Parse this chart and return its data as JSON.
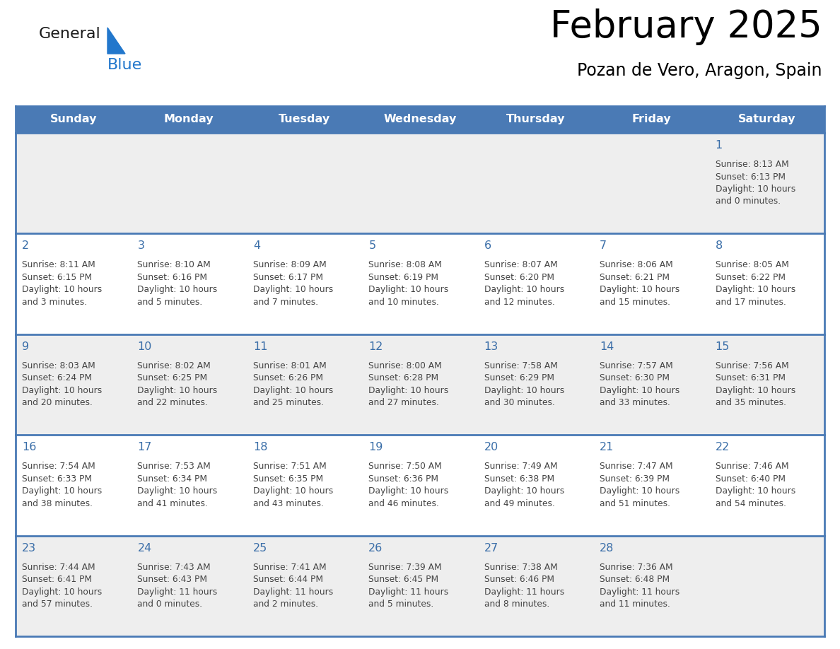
{
  "title": "February 2025",
  "subtitle": "Pozan de Vero, Aragon, Spain",
  "header_bg": "#4a7ab5",
  "header_text_color": "#ffffff",
  "cell_bg_light": "#eeeeee",
  "cell_bg_white": "#ffffff",
  "day_number_color": "#3a6ea8",
  "text_color": "#444444",
  "grid_line_color": "#4a7ab5",
  "days_of_week": [
    "Sunday",
    "Monday",
    "Tuesday",
    "Wednesday",
    "Thursday",
    "Friday",
    "Saturday"
  ],
  "weeks": [
    [
      {
        "day": null,
        "info": null
      },
      {
        "day": null,
        "info": null
      },
      {
        "day": null,
        "info": null
      },
      {
        "day": null,
        "info": null
      },
      {
        "day": null,
        "info": null
      },
      {
        "day": null,
        "info": null
      },
      {
        "day": "1",
        "lines": [
          "Sunrise: 8:13 AM",
          "Sunset: 6:13 PM",
          "Daylight: 10 hours",
          "and 0 minutes."
        ]
      }
    ],
    [
      {
        "day": "2",
        "lines": [
          "Sunrise: 8:11 AM",
          "Sunset: 6:15 PM",
          "Daylight: 10 hours",
          "and 3 minutes."
        ]
      },
      {
        "day": "3",
        "lines": [
          "Sunrise: 8:10 AM",
          "Sunset: 6:16 PM",
          "Daylight: 10 hours",
          "and 5 minutes."
        ]
      },
      {
        "day": "4",
        "lines": [
          "Sunrise: 8:09 AM",
          "Sunset: 6:17 PM",
          "Daylight: 10 hours",
          "and 7 minutes."
        ]
      },
      {
        "day": "5",
        "lines": [
          "Sunrise: 8:08 AM",
          "Sunset: 6:19 PM",
          "Daylight: 10 hours",
          "and 10 minutes."
        ]
      },
      {
        "day": "6",
        "lines": [
          "Sunrise: 8:07 AM",
          "Sunset: 6:20 PM",
          "Daylight: 10 hours",
          "and 12 minutes."
        ]
      },
      {
        "day": "7",
        "lines": [
          "Sunrise: 8:06 AM",
          "Sunset: 6:21 PM",
          "Daylight: 10 hours",
          "and 15 minutes."
        ]
      },
      {
        "day": "8",
        "lines": [
          "Sunrise: 8:05 AM",
          "Sunset: 6:22 PM",
          "Daylight: 10 hours",
          "and 17 minutes."
        ]
      }
    ],
    [
      {
        "day": "9",
        "lines": [
          "Sunrise: 8:03 AM",
          "Sunset: 6:24 PM",
          "Daylight: 10 hours",
          "and 20 minutes."
        ]
      },
      {
        "day": "10",
        "lines": [
          "Sunrise: 8:02 AM",
          "Sunset: 6:25 PM",
          "Daylight: 10 hours",
          "and 22 minutes."
        ]
      },
      {
        "day": "11",
        "lines": [
          "Sunrise: 8:01 AM",
          "Sunset: 6:26 PM",
          "Daylight: 10 hours",
          "and 25 minutes."
        ]
      },
      {
        "day": "12",
        "lines": [
          "Sunrise: 8:00 AM",
          "Sunset: 6:28 PM",
          "Daylight: 10 hours",
          "and 27 minutes."
        ]
      },
      {
        "day": "13",
        "lines": [
          "Sunrise: 7:58 AM",
          "Sunset: 6:29 PM",
          "Daylight: 10 hours",
          "and 30 minutes."
        ]
      },
      {
        "day": "14",
        "lines": [
          "Sunrise: 7:57 AM",
          "Sunset: 6:30 PM",
          "Daylight: 10 hours",
          "and 33 minutes."
        ]
      },
      {
        "day": "15",
        "lines": [
          "Sunrise: 7:56 AM",
          "Sunset: 6:31 PM",
          "Daylight: 10 hours",
          "and 35 minutes."
        ]
      }
    ],
    [
      {
        "day": "16",
        "lines": [
          "Sunrise: 7:54 AM",
          "Sunset: 6:33 PM",
          "Daylight: 10 hours",
          "and 38 minutes."
        ]
      },
      {
        "day": "17",
        "lines": [
          "Sunrise: 7:53 AM",
          "Sunset: 6:34 PM",
          "Daylight: 10 hours",
          "and 41 minutes."
        ]
      },
      {
        "day": "18",
        "lines": [
          "Sunrise: 7:51 AM",
          "Sunset: 6:35 PM",
          "Daylight: 10 hours",
          "and 43 minutes."
        ]
      },
      {
        "day": "19",
        "lines": [
          "Sunrise: 7:50 AM",
          "Sunset: 6:36 PM",
          "Daylight: 10 hours",
          "and 46 minutes."
        ]
      },
      {
        "day": "20",
        "lines": [
          "Sunrise: 7:49 AM",
          "Sunset: 6:38 PM",
          "Daylight: 10 hours",
          "and 49 minutes."
        ]
      },
      {
        "day": "21",
        "lines": [
          "Sunrise: 7:47 AM",
          "Sunset: 6:39 PM",
          "Daylight: 10 hours",
          "and 51 minutes."
        ]
      },
      {
        "day": "22",
        "lines": [
          "Sunrise: 7:46 AM",
          "Sunset: 6:40 PM",
          "Daylight: 10 hours",
          "and 54 minutes."
        ]
      }
    ],
    [
      {
        "day": "23",
        "lines": [
          "Sunrise: 7:44 AM",
          "Sunset: 6:41 PM",
          "Daylight: 10 hours",
          "and 57 minutes."
        ]
      },
      {
        "day": "24",
        "lines": [
          "Sunrise: 7:43 AM",
          "Sunset: 6:43 PM",
          "Daylight: 11 hours",
          "and 0 minutes."
        ]
      },
      {
        "day": "25",
        "lines": [
          "Sunrise: 7:41 AM",
          "Sunset: 6:44 PM",
          "Daylight: 11 hours",
          "and 2 minutes."
        ]
      },
      {
        "day": "26",
        "lines": [
          "Sunrise: 7:39 AM",
          "Sunset: 6:45 PM",
          "Daylight: 11 hours",
          "and 5 minutes."
        ]
      },
      {
        "day": "27",
        "lines": [
          "Sunrise: 7:38 AM",
          "Sunset: 6:46 PM",
          "Daylight: 11 hours",
          "and 8 minutes."
        ]
      },
      {
        "day": "28",
        "lines": [
          "Sunrise: 7:36 AM",
          "Sunset: 6:48 PM",
          "Daylight: 11 hours",
          "and 11 minutes."
        ]
      },
      {
        "day": null,
        "lines": null
      }
    ]
  ],
  "logo_general_color": "#1a1a1a",
  "logo_blue_color": "#2277cc",
  "fig_width": 11.88,
  "fig_height": 9.18,
  "dpi": 100
}
